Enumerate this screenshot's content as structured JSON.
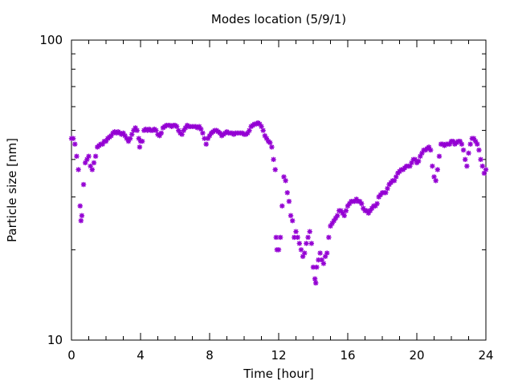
{
  "chart_data": {
    "type": "scatter",
    "title": "Modes location (5/9/1)",
    "xlabel": "Time [hour]",
    "ylabel": "Particle size [nm]",
    "xlim": [
      0,
      24
    ],
    "ylim": [
      10,
      100
    ],
    "yscale": "log",
    "grid": false,
    "marker_color": "#9400d3",
    "marker": "asterisk",
    "x_ticks": [
      0,
      4,
      8,
      12,
      16,
      20,
      24
    ],
    "x_tick_labels": [
      "0",
      "4",
      "8",
      "12",
      "16",
      "20",
      "24"
    ],
    "y_tick_labels": [
      "10",
      "100"
    ],
    "points": [
      [
        0.0,
        47
      ],
      [
        0.1,
        47
      ],
      [
        0.2,
        45
      ],
      [
        0.3,
        41
      ],
      [
        0.4,
        37
      ],
      [
        0.5,
        28
      ],
      [
        0.55,
        25
      ],
      [
        0.6,
        26
      ],
      [
        0.7,
        33
      ],
      [
        0.8,
        39
      ],
      [
        0.9,
        40
      ],
      [
        1.0,
        41
      ],
      [
        1.1,
        38
      ],
      [
        1.2,
        37
      ],
      [
        1.3,
        39
      ],
      [
        1.4,
        41
      ],
      [
        1.5,
        44
      ],
      [
        1.6,
        44.5
      ],
      [
        1.7,
        45
      ],
      [
        1.8,
        45
      ],
      [
        1.9,
        46
      ],
      [
        2.0,
        46
      ],
      [
        2.1,
        47
      ],
      [
        2.2,
        47.5
      ],
      [
        2.3,
        48
      ],
      [
        2.4,
        49
      ],
      [
        2.5,
        49.5
      ],
      [
        2.6,
        49
      ],
      [
        2.7,
        49.5
      ],
      [
        2.8,
        49
      ],
      [
        2.9,
        48.5
      ],
      [
        3.0,
        49
      ],
      [
        3.1,
        48
      ],
      [
        3.2,
        47
      ],
      [
        3.3,
        46
      ],
      [
        3.4,
        47
      ],
      [
        3.5,
        48.5
      ],
      [
        3.6,
        50
      ],
      [
        3.7,
        51
      ],
      [
        3.8,
        50
      ],
      [
        3.9,
        47
      ],
      [
        3.95,
        44
      ],
      [
        4.0,
        46
      ],
      [
        4.1,
        46
      ],
      [
        4.2,
        50
      ],
      [
        4.3,
        50.5
      ],
      [
        4.4,
        50
      ],
      [
        4.5,
        50.5
      ],
      [
        4.6,
        50
      ],
      [
        4.7,
        50
      ],
      [
        4.8,
        50.5
      ],
      [
        4.9,
        50
      ],
      [
        5.0,
        48.5
      ],
      [
        5.1,
        48
      ],
      [
        5.2,
        49
      ],
      [
        5.3,
        51
      ],
      [
        5.4,
        51.5
      ],
      [
        5.5,
        52
      ],
      [
        5.6,
        52
      ],
      [
        5.7,
        52
      ],
      [
        5.8,
        51.5
      ],
      [
        5.9,
        52
      ],
      [
        6.0,
        52
      ],
      [
        6.1,
        51.5
      ],
      [
        6.2,
        50
      ],
      [
        6.3,
        49
      ],
      [
        6.4,
        48.5
      ],
      [
        6.5,
        50
      ],
      [
        6.6,
        51
      ],
      [
        6.7,
        52
      ],
      [
        6.8,
        51.5
      ],
      [
        6.9,
        51.5
      ],
      [
        7.0,
        51.5
      ],
      [
        7.1,
        51.5
      ],
      [
        7.2,
        51.5
      ],
      [
        7.3,
        51
      ],
      [
        7.4,
        51.5
      ],
      [
        7.5,
        50.5
      ],
      [
        7.6,
        49
      ],
      [
        7.7,
        47
      ],
      [
        7.8,
        45
      ],
      [
        7.9,
        47
      ],
      [
        8.0,
        48
      ],
      [
        8.1,
        49
      ],
      [
        8.2,
        49.5
      ],
      [
        8.3,
        50
      ],
      [
        8.4,
        50
      ],
      [
        8.5,
        49.5
      ],
      [
        8.6,
        49
      ],
      [
        8.7,
        48
      ],
      [
        8.8,
        48.5
      ],
      [
        8.9,
        49
      ],
      [
        9.0,
        49.5
      ],
      [
        9.1,
        49
      ],
      [
        9.2,
        49
      ],
      [
        9.3,
        49
      ],
      [
        9.4,
        48.5
      ],
      [
        9.5,
        49
      ],
      [
        9.6,
        49
      ],
      [
        9.7,
        49
      ],
      [
        9.8,
        49
      ],
      [
        9.9,
        49
      ],
      [
        10.0,
        48.5
      ],
      [
        10.1,
        48.5
      ],
      [
        10.2,
        49
      ],
      [
        10.3,
        50
      ],
      [
        10.4,
        51.5
      ],
      [
        10.5,
        52
      ],
      [
        10.6,
        52.5
      ],
      [
        10.7,
        52.5
      ],
      [
        10.8,
        53
      ],
      [
        10.9,
        52.5
      ],
      [
        11.0,
        51.5
      ],
      [
        11.1,
        50
      ],
      [
        11.2,
        48
      ],
      [
        11.3,
        47
      ],
      [
        11.4,
        46
      ],
      [
        11.5,
        45.5
      ],
      [
        11.6,
        44
      ],
      [
        11.7,
        40
      ],
      [
        11.8,
        37
      ],
      [
        11.85,
        22
      ],
      [
        11.9,
        20
      ],
      [
        12.0,
        20
      ],
      [
        12.1,
        22
      ],
      [
        12.2,
        28
      ],
      [
        12.3,
        35
      ],
      [
        12.4,
        34
      ],
      [
        12.5,
        31
      ],
      [
        12.6,
        29
      ],
      [
        12.7,
        26
      ],
      [
        12.8,
        25
      ],
      [
        12.9,
        22
      ],
      [
        13.0,
        23
      ],
      [
        13.1,
        22
      ],
      [
        13.2,
        21
      ],
      [
        13.3,
        20
      ],
      [
        13.4,
        19
      ],
      [
        13.5,
        19.5
      ],
      [
        13.6,
        21
      ],
      [
        13.7,
        22
      ],
      [
        13.8,
        23
      ],
      [
        13.9,
        21
      ],
      [
        14.0,
        17.5
      ],
      [
        14.1,
        16
      ],
      [
        14.15,
        15.5
      ],
      [
        14.2,
        17.5
      ],
      [
        14.3,
        18.5
      ],
      [
        14.4,
        19.5
      ],
      [
        14.5,
        18.5
      ],
      [
        14.6,
        18
      ],
      [
        14.7,
        19
      ],
      [
        14.8,
        19.5
      ],
      [
        14.9,
        22
      ],
      [
        15.0,
        24
      ],
      [
        15.1,
        24.5
      ],
      [
        15.2,
        25
      ],
      [
        15.3,
        25.5
      ],
      [
        15.4,
        26
      ],
      [
        15.5,
        27
      ],
      [
        15.6,
        27
      ],
      [
        15.7,
        26.5
      ],
      [
        15.8,
        26
      ],
      [
        15.9,
        27
      ],
      [
        16.0,
        28
      ],
      [
        16.1,
        28.5
      ],
      [
        16.2,
        29
      ],
      [
        16.3,
        29
      ],
      [
        16.4,
        29
      ],
      [
        16.5,
        29.5
      ],
      [
        16.6,
        29
      ],
      [
        16.7,
        29
      ],
      [
        16.8,
        28.5
      ],
      [
        16.9,
        27.5
      ],
      [
        17.0,
        27
      ],
      [
        17.1,
        27
      ],
      [
        17.2,
        26.5
      ],
      [
        17.3,
        27
      ],
      [
        17.4,
        27.5
      ],
      [
        17.5,
        28
      ],
      [
        17.6,
        28
      ],
      [
        17.7,
        28.5
      ],
      [
        17.8,
        30
      ],
      [
        17.9,
        30.5
      ],
      [
        18.0,
        31
      ],
      [
        18.1,
        31
      ],
      [
        18.2,
        31
      ],
      [
        18.3,
        32
      ],
      [
        18.4,
        33
      ],
      [
        18.5,
        33.5
      ],
      [
        18.6,
        34
      ],
      [
        18.7,
        34
      ],
      [
        18.8,
        35
      ],
      [
        18.9,
        36
      ],
      [
        19.0,
        36.5
      ],
      [
        19.1,
        37
      ],
      [
        19.2,
        37
      ],
      [
        19.3,
        37.5
      ],
      [
        19.4,
        38
      ],
      [
        19.5,
        38
      ],
      [
        19.6,
        38
      ],
      [
        19.7,
        39
      ],
      [
        19.8,
        40
      ],
      [
        19.9,
        40
      ],
      [
        20.0,
        39
      ],
      [
        20.1,
        39.5
      ],
      [
        20.2,
        41
      ],
      [
        20.3,
        42
      ],
      [
        20.4,
        43
      ],
      [
        20.5,
        43
      ],
      [
        20.6,
        43.5
      ],
      [
        20.7,
        44
      ],
      [
        20.8,
        43
      ],
      [
        20.9,
        38
      ],
      [
        21.0,
        35
      ],
      [
        21.1,
        34
      ],
      [
        21.2,
        37
      ],
      [
        21.3,
        41
      ],
      [
        21.4,
        45
      ],
      [
        21.5,
        45
      ],
      [
        21.6,
        44.5
      ],
      [
        21.7,
        45
      ],
      [
        21.8,
        45
      ],
      [
        21.9,
        45
      ],
      [
        22.0,
        46
      ],
      [
        22.1,
        46
      ],
      [
        22.2,
        45
      ],
      [
        22.3,
        45.5
      ],
      [
        22.4,
        46
      ],
      [
        22.5,
        46
      ],
      [
        22.6,
        45
      ],
      [
        22.7,
        43
      ],
      [
        22.8,
        40
      ],
      [
        22.9,
        38
      ],
      [
        23.0,
        42
      ],
      [
        23.1,
        45
      ],
      [
        23.2,
        47
      ],
      [
        23.3,
        47
      ],
      [
        23.4,
        46
      ],
      [
        23.5,
        45
      ],
      [
        23.6,
        43
      ],
      [
        23.7,
        40
      ],
      [
        23.8,
        38
      ],
      [
        23.9,
        36
      ],
      [
        24.0,
        37
      ]
    ]
  }
}
